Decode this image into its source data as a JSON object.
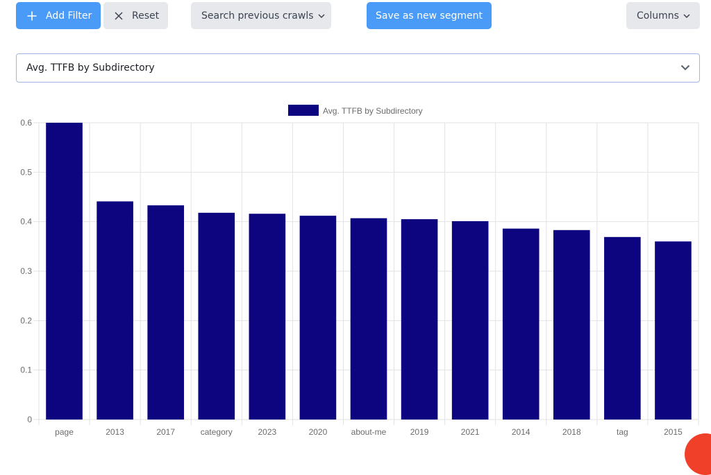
{
  "toolbar": {
    "add_filter": "Add Filter",
    "reset": "Reset",
    "search_previous_crawls": "Search previous crawls",
    "save_segment": "Save as new segment",
    "columns": "Columns"
  },
  "report_select": {
    "selected": "Avg. TTFB by Subdirectory"
  },
  "colors": {
    "primary_button": "#4a9bf7",
    "secondary_button": "#e6e8ec",
    "bar": "#0d0580",
    "corner_accent": "#f0402a"
  },
  "icons": {
    "add": "plus-icon",
    "reset": "close-icon",
    "dropdown": "chevron-down-icon"
  },
  "chart_data": {
    "type": "bar",
    "title": "",
    "legend": [
      "Avg. TTFB by Subdirectory"
    ],
    "legend_position": "top",
    "categories": [
      "page",
      "2013",
      "2017",
      "category",
      "2023",
      "2020",
      "about-me",
      "2019",
      "2021",
      "2014",
      "2018",
      "tag",
      "2015"
    ],
    "series": [
      {
        "name": "Avg. TTFB by Subdirectory",
        "values": [
          0.6,
          0.441,
          0.433,
          0.418,
          0.416,
          0.412,
          0.407,
          0.405,
          0.401,
          0.386,
          0.383,
          0.369,
          0.36
        ]
      }
    ],
    "ylim": [
      0,
      0.6
    ],
    "yticks": [
      "0",
      "0.1",
      "0.2",
      "0.3",
      "0.4",
      "0.5",
      "0.6"
    ],
    "grid": true,
    "xlabel": "",
    "ylabel": ""
  }
}
